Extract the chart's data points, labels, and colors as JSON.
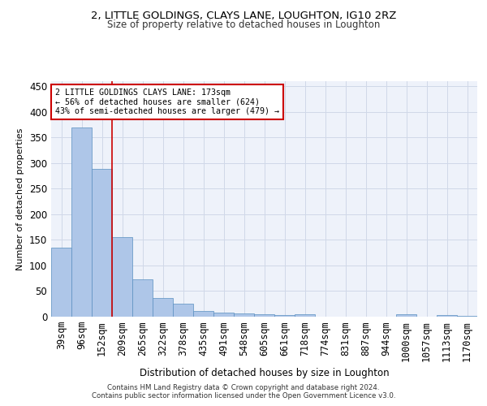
{
  "title1": "2, LITTLE GOLDINGS, CLAYS LANE, LOUGHTON, IG10 2RZ",
  "title2": "Size of property relative to detached houses in Loughton",
  "xlabel": "Distribution of detached houses by size in Loughton",
  "ylabel": "Number of detached properties",
  "categories": [
    "39sqm",
    "96sqm",
    "152sqm",
    "209sqm",
    "265sqm",
    "322sqm",
    "378sqm",
    "435sqm",
    "491sqm",
    "548sqm",
    "605sqm",
    "661sqm",
    "718sqm",
    "774sqm",
    "831sqm",
    "887sqm",
    "944sqm",
    "1000sqm",
    "1057sqm",
    "1113sqm",
    "1170sqm"
  ],
  "values": [
    135,
    370,
    288,
    155,
    73,
    37,
    25,
    11,
    8,
    6,
    4,
    3,
    5,
    0,
    0,
    0,
    0,
    4,
    0,
    3,
    1
  ],
  "bar_color": "#aec6e8",
  "bar_edge_color": "#5a8fc0",
  "vline_x_index": 2,
  "vline_color": "#cc0000",
  "annotation_lines": [
    "2 LITTLE GOLDINGS CLAYS LANE: 173sqm",
    "← 56% of detached houses are smaller (624)",
    "43% of semi-detached houses are larger (479) →"
  ],
  "annotation_box_color": "#ffffff",
  "annotation_box_edge": "#cc0000",
  "ylim": [
    0,
    460
  ],
  "yticks": [
    0,
    50,
    100,
    150,
    200,
    250,
    300,
    350,
    400,
    450
  ],
  "grid_color": "#d0d8e8",
  "bg_color": "#eef2fa",
  "footer1": "Contains HM Land Registry data © Crown copyright and database right 2024.",
  "footer2": "Contains public sector information licensed under the Open Government Licence v3.0."
}
